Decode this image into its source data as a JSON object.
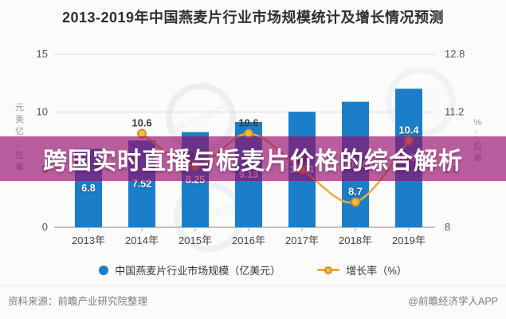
{
  "title": "2013-2019年中国燕麦片行业市场规模统计及增长情况预测",
  "overlay": {
    "text": "跨国实时直播与栀麦片价格的综合解析",
    "bg_color": "#960a6e",
    "bg_rgba": "rgba(148,10,110,0.66)"
  },
  "chart_data": {
    "type": "bar+line",
    "categories": [
      "2013年",
      "2014年",
      "2015年",
      "2016年",
      "2017年",
      "2018年",
      "2019年"
    ],
    "series": [
      {
        "name": "中国燕麦片行业市场规模（亿美元）",
        "type": "bar",
        "values": [
          6.8,
          7.52,
          8.25,
          9.13,
          10.01,
          10.88,
          12.01
        ],
        "labels": [
          "6.8",
          "7.52",
          "8.25",
          "9.13",
          "10.01",
          "10.88",
          "12.01"
        ],
        "color": "#1b7ec8"
      },
      {
        "name": "增长率（%）",
        "type": "line",
        "values": [
          null,
          10.6,
          9.7,
          10.6,
          9.6,
          8.7,
          10.4
        ],
        "labels": [
          "",
          "10.6",
          "9.7",
          "10.6",
          "9.6",
          "8.7",
          "10.4"
        ],
        "label_styles": [
          "dark",
          "dark",
          "dark",
          "dark",
          "dark",
          "light",
          "light"
        ],
        "color": "#eaaa3e",
        "point_fill": "#f2b94e",
        "point_stroke": "#d18f1f"
      }
    ],
    "left_axis": {
      "title": "单位：亿美元",
      "ticks": [
        "0",
        "5",
        "10",
        "15"
      ],
      "range": [
        0,
        15
      ]
    },
    "right_axis": {
      "title": "单位：%",
      "ticks": [
        "8",
        "9.6",
        "11.2",
        "12.8"
      ],
      "range": [
        8,
        12.8
      ]
    },
    "grid": true,
    "legend_position": "bottom"
  },
  "legend": {
    "bar_label": "中国燕麦片行业市场规模（亿美元）",
    "line_label": "增长率（%）"
  },
  "watermark": "前瞻产业研究院",
  "footer": {
    "source": "资料来源：前瞻产业研究院整理",
    "credit": "@前瞻经济学人APP"
  }
}
